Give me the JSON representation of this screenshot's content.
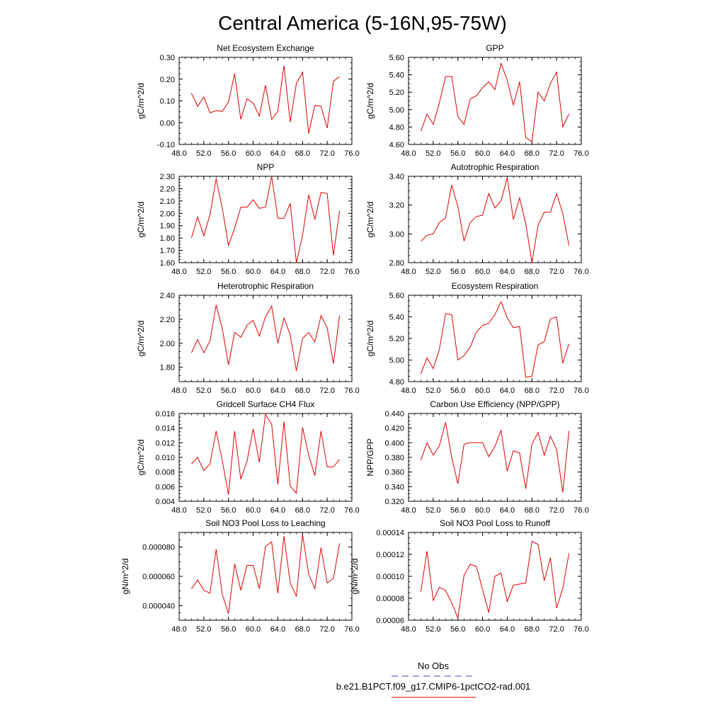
{
  "page": {
    "title": "Central America (5-16N,95-75W)"
  },
  "legend": {
    "items": [
      {
        "label": "No Obs",
        "color": "#6a6ad8",
        "style": "dashed"
      },
      {
        "label": "b.e21.B1PCT.f09_g17.CMIP6-1pctCO2-rad.001",
        "color": "#e82a2a",
        "style": "solid"
      }
    ]
  },
  "colors": {
    "series": "#e00000",
    "axis": "#000000"
  },
  "chart_data": [
    {
      "type": "line",
      "title": "Net Ecosystem Exchange",
      "ylabel": "gC/m^2/d",
      "xlim": [
        48,
        76
      ],
      "ylim": [
        -0.1,
        0.3
      ],
      "yticks": [
        "-0.10",
        "0.00",
        "0.10",
        "0.20",
        "0.30"
      ],
      "xticks": [
        "48.0",
        "52.0",
        "56.0",
        "60.0",
        "64.0",
        "68.0",
        "72.0",
        "76.0"
      ],
      "x": [
        50,
        51,
        52,
        53,
        54,
        55,
        56,
        57,
        58,
        59,
        60,
        61,
        62,
        63,
        64,
        65,
        66,
        67,
        68,
        69,
        70,
        71,
        72,
        73,
        74
      ],
      "series": [
        {
          "values": [
            0.135,
            0.075,
            0.118,
            0.045,
            0.055,
            0.052,
            0.095,
            0.225,
            0.015,
            0.11,
            0.09,
            0.03,
            0.172,
            0.015,
            0.052,
            0.262,
            0.003,
            0.18,
            0.232,
            -0.05,
            0.08,
            0.075,
            -0.025,
            0.19,
            0.212
          ]
        }
      ]
    },
    {
      "type": "line",
      "title": "GPP",
      "ylabel": "gC/m^2/d",
      "xlim": [
        48,
        76
      ],
      "ylim": [
        4.6,
        5.6
      ],
      "yticks": [
        "4.60",
        "4.80",
        "5.00",
        "5.20",
        "5.40",
        "5.60"
      ],
      "xticks": [
        "48.0",
        "52.0",
        "56.0",
        "60.0",
        "64.0",
        "68.0",
        "72.0",
        "76.0"
      ],
      "x": [
        50,
        51,
        52,
        53,
        54,
        55,
        56,
        57,
        58,
        59,
        60,
        61,
        62,
        63,
        64,
        65,
        66,
        67,
        68,
        69,
        70,
        71,
        72,
        73,
        74
      ],
      "series": [
        {
          "values": [
            4.75,
            4.95,
            4.83,
            5.08,
            5.38,
            5.38,
            4.92,
            4.83,
            5.12,
            5.16,
            5.25,
            5.32,
            5.23,
            5.53,
            5.34,
            5.05,
            5.32,
            4.68,
            4.63,
            5.2,
            5.1,
            5.3,
            5.43,
            4.8,
            4.95
          ]
        }
      ]
    },
    {
      "type": "line",
      "title": "NPP",
      "ylabel": "gC/m^2/d",
      "xlim": [
        48,
        76
      ],
      "ylim": [
        1.6,
        2.3
      ],
      "yticks": [
        "1.60",
        "1.70",
        "1.80",
        "1.90",
        "2.00",
        "2.10",
        "2.20",
        "2.30"
      ],
      "xticks": [
        "48.0",
        "52.0",
        "56.0",
        "60.0",
        "64.0",
        "68.0",
        "72.0",
        "76.0"
      ],
      "x": [
        50,
        51,
        52,
        53,
        54,
        55,
        56,
        57,
        58,
        59,
        60,
        61,
        62,
        63,
        64,
        65,
        66,
        67,
        68,
        69,
        70,
        71,
        72,
        73,
        74
      ],
      "series": [
        {
          "values": [
            1.8,
            1.97,
            1.82,
            1.99,
            2.28,
            2.04,
            1.74,
            1.88,
            2.05,
            2.05,
            2.11,
            2.04,
            2.05,
            2.3,
            1.96,
            1.96,
            2.08,
            1.6,
            1.82,
            2.15,
            1.95,
            2.17,
            2.16,
            1.66,
            2.02
          ]
        }
      ]
    },
    {
      "type": "line",
      "title": "Autotrophic Respiration",
      "ylabel": "gC/m^2/d",
      "xlim": [
        48,
        76
      ],
      "ylim": [
        2.8,
        3.4
      ],
      "yticks": [
        "2.80",
        "3.00",
        "3.20",
        "3.40"
      ],
      "xticks": [
        "48.0",
        "52.0",
        "56.0",
        "60.0",
        "64.0",
        "68.0",
        "72.0",
        "76.0"
      ],
      "x": [
        50,
        51,
        52,
        53,
        54,
        55,
        56,
        57,
        58,
        59,
        60,
        61,
        62,
        63,
        64,
        65,
        66,
        67,
        68,
        69,
        70,
        71,
        72,
        73,
        74
      ],
      "series": [
        {
          "values": [
            2.95,
            2.99,
            3.0,
            3.08,
            3.11,
            3.34,
            3.19,
            2.95,
            3.08,
            3.12,
            3.13,
            3.28,
            3.18,
            3.23,
            3.39,
            3.1,
            3.25,
            3.07,
            2.8,
            3.06,
            3.15,
            3.15,
            3.28,
            3.14,
            2.92
          ]
        }
      ]
    },
    {
      "type": "line",
      "title": "Heterotrophic Respiration",
      "ylabel": "gC/m^2/d",
      "xlim": [
        48,
        76
      ],
      "ylim": [
        1.68,
        2.4
      ],
      "yticks": [
        "1.80",
        "2.00",
        "2.20",
        "2.40"
      ],
      "xticks": [
        "48.0",
        "52.0",
        "56.0",
        "60.0",
        "64.0",
        "68.0",
        "72.0",
        "76.0"
      ],
      "x": [
        50,
        51,
        52,
        53,
        54,
        55,
        56,
        57,
        58,
        59,
        60,
        61,
        62,
        63,
        64,
        65,
        66,
        67,
        68,
        69,
        70,
        71,
        72,
        73,
        74
      ],
      "series": [
        {
          "values": [
            1.92,
            2.03,
            1.92,
            2.02,
            2.32,
            2.12,
            1.82,
            2.09,
            2.05,
            2.15,
            2.19,
            2.06,
            2.22,
            2.31,
            2.0,
            2.21,
            2.07,
            1.77,
            2.04,
            2.09,
            2.01,
            2.23,
            2.13,
            1.83,
            2.23
          ]
        }
      ]
    },
    {
      "type": "line",
      "title": "Ecosystem Respiration",
      "ylabel": "gC/m^2/d",
      "xlim": [
        48,
        76
      ],
      "ylim": [
        4.8,
        5.6
      ],
      "yticks": [
        "4.80",
        "5.00",
        "5.20",
        "5.40",
        "5.60"
      ],
      "xticks": [
        "48.0",
        "52.0",
        "56.0",
        "60.0",
        "64.0",
        "68.0",
        "72.0",
        "76.0"
      ],
      "x": [
        50,
        51,
        52,
        53,
        54,
        55,
        56,
        57,
        58,
        59,
        60,
        61,
        62,
        63,
        64,
        65,
        66,
        67,
        68,
        69,
        70,
        71,
        72,
        73,
        74
      ],
      "series": [
        {
          "values": [
            4.87,
            5.02,
            4.92,
            5.1,
            5.43,
            5.42,
            5.0,
            5.04,
            5.12,
            5.26,
            5.32,
            5.34,
            5.42,
            5.54,
            5.39,
            5.3,
            5.31,
            4.84,
            4.85,
            5.14,
            5.17,
            5.38,
            5.4,
            4.97,
            5.15
          ]
        }
      ]
    },
    {
      "type": "line",
      "title": "Gridcell Surface CH4 Flux",
      "ylabel": "gC/m^2/d",
      "xlim": [
        48,
        76
      ],
      "ylim": [
        0.004,
        0.016
      ],
      "yticks": [
        "0.004",
        "0.006",
        "0.008",
        "0.010",
        "0.012",
        "0.014",
        "0.016"
      ],
      "xticks": [
        "48.0",
        "52.0",
        "56.0",
        "60.0",
        "64.0",
        "68.0",
        "72.0",
        "76.0"
      ],
      "x": [
        50,
        51,
        52,
        53,
        54,
        55,
        56,
        57,
        58,
        59,
        60,
        61,
        62,
        63,
        64,
        65,
        66,
        67,
        68,
        69,
        70,
        71,
        72,
        73,
        74
      ],
      "series": [
        {
          "values": [
            0.0091,
            0.01,
            0.0082,
            0.0091,
            0.0136,
            0.0095,
            0.0049,
            0.0136,
            0.007,
            0.0095,
            0.0139,
            0.0093,
            0.0159,
            0.0145,
            0.0063,
            0.0149,
            0.0061,
            0.0051,
            0.0141,
            0.0103,
            0.0075,
            0.0136,
            0.0087,
            0.0087,
            0.0097
          ]
        }
      ]
    },
    {
      "type": "line",
      "title": "Carbon Use Efficiency (NPP/GPP)",
      "ylabel": "NPP/GPP",
      "xlim": [
        48,
        76
      ],
      "ylim": [
        0.32,
        0.44
      ],
      "yticks": [
        "0.320",
        "0.340",
        "0.360",
        "0.380",
        "0.400",
        "0.420",
        "0.440"
      ],
      "xticks": [
        "48.0",
        "52.0",
        "56.0",
        "60.0",
        "64.0",
        "68.0",
        "72.0",
        "76.0"
      ],
      "x": [
        50,
        51,
        52,
        53,
        54,
        55,
        56,
        57,
        58,
        59,
        60,
        61,
        62,
        63,
        64,
        65,
        66,
        67,
        68,
        69,
        70,
        71,
        72,
        73,
        74
      ],
      "series": [
        {
          "values": [
            0.376,
            0.4,
            0.383,
            0.396,
            0.428,
            0.38,
            0.344,
            0.398,
            0.4,
            0.4,
            0.4,
            0.381,
            0.395,
            0.417,
            0.361,
            0.389,
            0.386,
            0.337,
            0.398,
            0.414,
            0.383,
            0.409,
            0.391,
            0.332,
            0.416
          ]
        }
      ]
    },
    {
      "type": "line",
      "title": "Soil NO3 Pool Loss to Leaching",
      "ylabel": "gN/m^2/d",
      "xlim": [
        48,
        76
      ],
      "ylim": [
        3e-05,
        9e-05
      ],
      "yticks": [
        "0.000040",
        "0.000060",
        "0.000080"
      ],
      "xticks": [
        "48.0",
        "52.0",
        "56.0",
        "60.0",
        "64.0",
        "68.0",
        "72.0",
        "76.0"
      ],
      "x": [
        50,
        51,
        52,
        53,
        54,
        55,
        56,
        57,
        58,
        59,
        60,
        61,
        62,
        63,
        64,
        65,
        66,
        67,
        68,
        69,
        70,
        71,
        72,
        73,
        74
      ],
      "series": [
        {
          "values": [
            5.15e-05,
            5.75e-05,
            5.05e-05,
            4.85e-05,
            7.85e-05,
            4.75e-05,
            3.45e-05,
            6.85e-05,
            5.05e-05,
            6.75e-05,
            6.75e-05,
            5.15e-05,
            8.05e-05,
            8.35e-05,
            4.85e-05,
            8.75e-05,
            5.55e-05,
            4.65e-05,
            8.85e-05,
            6.15e-05,
            5.15e-05,
            7.95e-05,
            5.55e-05,
            5.85e-05,
            8.25e-05
          ]
        }
      ]
    },
    {
      "type": "line",
      "title": "Soil NO3 Pool Loss to Runoff",
      "ylabel": "gN/m^2/d",
      "xlim": [
        48,
        76
      ],
      "ylim": [
        6e-05,
        0.00014
      ],
      "yticks": [
        "0.00006",
        "0.00008",
        "0.00010",
        "0.00012",
        "0.00014"
      ],
      "xticks": [
        "48.0",
        "52.0",
        "56.0",
        "60.0",
        "64.0",
        "68.0",
        "72.0",
        "76.0"
      ],
      "x": [
        50,
        51,
        52,
        53,
        54,
        55,
        56,
        57,
        58,
        59,
        60,
        61,
        62,
        63,
        64,
        65,
        66,
        67,
        68,
        69,
        70,
        71,
        72,
        73,
        74
      ],
      "series": [
        {
          "values": [
            8.6e-05,
            0.000123,
            7.8e-05,
            9e-05,
            8.7e-05,
            7.6e-05,
            6.2e-05,
            0.000101,
            0.000111,
            0.000109,
            8.8e-05,
            6.7e-05,
            0.0001,
            0.000103,
            7.7e-05,
            9.2e-05,
            9.3e-05,
            9.4e-05,
            0.000132,
            0.000129,
            9.6e-05,
            0.000117,
            7.1e-05,
            8.9e-05,
            0.000121
          ]
        }
      ]
    }
  ]
}
